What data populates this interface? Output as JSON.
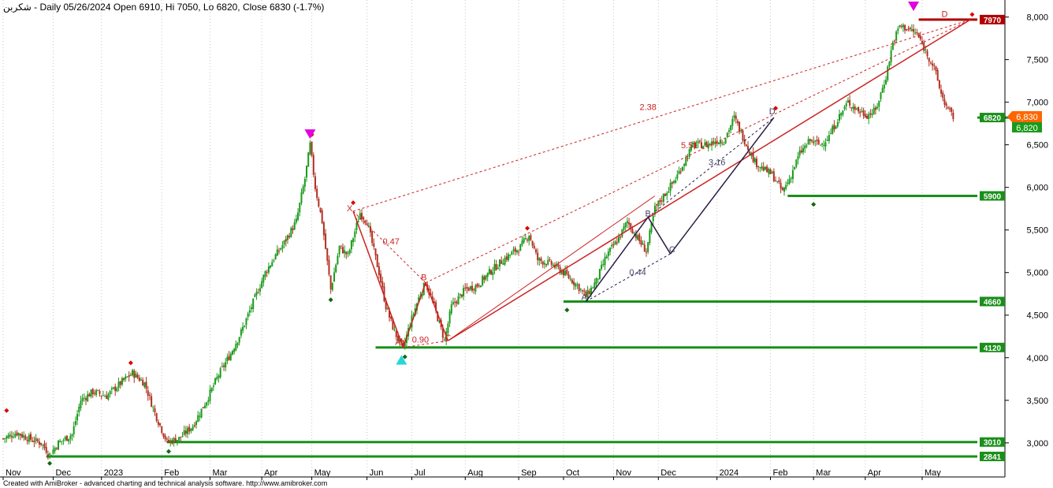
{
  "header": {
    "symbol": "شکربن",
    "info": " - Daily 05/26/2024 Open 6910, Hi 7050, Lo 6820, Close 6830 (-1.7%)"
  },
  "footer": {
    "credit": "Created with AmiBroker - advanced charting and technical analysis software. http://www.amibroker.com"
  },
  "chart_data": {
    "type": "candlestick",
    "y_axis": {
      "min": 2600,
      "max": 8200,
      "ticks": [
        "3,000",
        "3,500",
        "4,000",
        "4,500",
        "5,000",
        "5,500",
        "6,000",
        "6,500",
        "7,000",
        "7,500",
        "8,000"
      ],
      "tick_values": [
        3000,
        3500,
        4000,
        4500,
        5000,
        5500,
        6000,
        6500,
        7000,
        7500,
        8000
      ]
    },
    "x_axis": {
      "labels": [
        "Nov",
        "Dec",
        "2023",
        "Feb",
        "Mar",
        "Apr",
        "May",
        "Jun",
        "Jul",
        "Aug",
        "Sep",
        "Oct",
        "Nov",
        "Dec",
        "2024",
        "Feb",
        "Mar",
        "Apr",
        "May"
      ],
      "label_days": [
        0,
        29,
        57,
        92,
        120,
        150,
        179,
        211,
        237,
        268,
        299,
        325,
        354,
        380,
        414,
        445,
        470,
        500,
        533
      ]
    },
    "last_price": {
      "value": "6,830",
      "color": "#ff6600"
    },
    "last_close_label": "6,820",
    "levels": [
      {
        "label": "7970",
        "price": 7970,
        "color": "#b00000",
        "from_day": 531
      },
      {
        "label": "6820",
        "price": 6820,
        "color": "#1a8f1a",
        "from_day": 588
      },
      {
        "label": "5900",
        "price": 5900,
        "color": "#1a8f1a",
        "from_day": 455
      },
      {
        "label": "4660",
        "price": 4660,
        "color": "#1a8f1a",
        "from_day": 325
      },
      {
        "label": "4120",
        "price": 4120,
        "color": "#1a8f1a",
        "from_day": 216
      },
      {
        "label": "3010",
        "price": 3010,
        "color": "#1a8f1a",
        "from_day": 95
      },
      {
        "label": "2841",
        "price": 2841,
        "color": "#1a8f1a",
        "from_day": 25
      }
    ],
    "price_path": [
      [
        0,
        3050
      ],
      [
        8,
        3120
      ],
      [
        15,
        3050
      ],
      [
        22,
        3000
      ],
      [
        27,
        2860
      ],
      [
        32,
        3000
      ],
      [
        40,
        3100
      ],
      [
        45,
        3500
      ],
      [
        52,
        3600
      ],
      [
        60,
        3550
      ],
      [
        68,
        3700
      ],
      [
        75,
        3820
      ],
      [
        82,
        3700
      ],
      [
        88,
        3350
      ],
      [
        95,
        3010
      ],
      [
        102,
        3050
      ],
      [
        110,
        3200
      ],
      [
        118,
        3500
      ],
      [
        125,
        3800
      ],
      [
        132,
        4050
      ],
      [
        138,
        4300
      ],
      [
        145,
        4650
      ],
      [
        152,
        5000
      ],
      [
        158,
        5200
      ],
      [
        163,
        5350
      ],
      [
        170,
        5600
      ],
      [
        175,
        6100
      ],
      [
        178,
        6500
      ],
      [
        181,
        6000
      ],
      [
        185,
        5600
      ],
      [
        190,
        4800
      ],
      [
        195,
        5300
      ],
      [
        200,
        5200
      ],
      [
        207,
        5700
      ],
      [
        211,
        5600
      ],
      [
        218,
        5000
      ],
      [
        222,
        4600
      ],
      [
        227,
        4300
      ],
      [
        232,
        4110
      ],
      [
        236,
        4400
      ],
      [
        241,
        4700
      ],
      [
        245,
        4880
      ],
      [
        250,
        4600
      ],
      [
        256,
        4200
      ],
      [
        260,
        4600
      ],
      [
        268,
        4800
      ],
      [
        275,
        4850
      ],
      [
        282,
        5000
      ],
      [
        290,
        5150
      ],
      [
        300,
        5300
      ],
      [
        305,
        5450
      ],
      [
        310,
        5150
      ],
      [
        318,
        5100
      ],
      [
        325,
        5000
      ],
      [
        333,
        4850
      ],
      [
        338,
        4720
      ],
      [
        344,
        4900
      ],
      [
        350,
        5200
      ],
      [
        357,
        5400
      ],
      [
        362,
        5600
      ],
      [
        368,
        5400
      ],
      [
        373,
        5250
      ],
      [
        378,
        5750
      ],
      [
        383,
        5900
      ],
      [
        390,
        6100
      ],
      [
        395,
        6300
      ],
      [
        400,
        6500
      ],
      [
        408,
        6500
      ],
      [
        414,
        6550
      ],
      [
        418,
        6550
      ],
      [
        424,
        6820
      ],
      [
        430,
        6550
      ],
      [
        436,
        6300
      ],
      [
        442,
        6200
      ],
      [
        446,
        6150
      ],
      [
        452,
        5950
      ],
      [
        456,
        6100
      ],
      [
        462,
        6400
      ],
      [
        468,
        6550
      ],
      [
        474,
        6500
      ],
      [
        479,
        6600
      ],
      [
        484,
        6800
      ],
      [
        490,
        7000
      ],
      [
        496,
        6900
      ],
      [
        501,
        6850
      ],
      [
        506,
        6900
      ],
      [
        512,
        7300
      ],
      [
        516,
        7700
      ],
      [
        520,
        7900
      ],
      [
        526,
        7850
      ],
      [
        530,
        7800
      ],
      [
        535,
        7600
      ],
      [
        540,
        7400
      ],
      [
        544,
        7100
      ],
      [
        548,
        6900
      ],
      [
        551,
        6830
      ]
    ],
    "signals_down": [
      {
        "day": 178,
        "price": 6570,
        "color": "#e000e0"
      },
      {
        "day": 528,
        "price": 8070,
        "color": "#e000e0"
      }
    ],
    "signals_up": [
      {
        "day": 231,
        "price": 4030,
        "color": "#27d6d6"
      }
    ],
    "pivots_high": [
      {
        "day": 2,
        "price": 3380
      },
      {
        "day": 74,
        "price": 3940
      },
      {
        "day": 179,
        "price": 6620
      },
      {
        "day": 203,
        "price": 5820
      },
      {
        "day": 304,
        "price": 5520
      },
      {
        "day": 448,
        "price": 6930
      },
      {
        "day": 562,
        "price": 8030
      }
    ],
    "pivots_low": [
      {
        "day": 27,
        "price": 2760
      },
      {
        "day": 96,
        "price": 2900
      },
      {
        "day": 190,
        "price": 4680
      },
      {
        "day": 233,
        "price": 4010
      },
      {
        "day": 327,
        "price": 4560
      },
      {
        "day": 470,
        "price": 5800
      }
    ],
    "harmonic_labels": [
      {
        "text": "X",
        "day": 201,
        "price": 5720,
        "color": "#cc2222"
      },
      {
        "text": "B",
        "day": 244,
        "price": 4910,
        "color": "#cc2222"
      },
      {
        "text": "A",
        "day": 229,
        "price": 4150,
        "color": "#cc2222"
      },
      {
        "text": "C",
        "day": 258,
        "price": 4200,
        "color": "#cc2222"
      },
      {
        "text": "D",
        "day": 546,
        "price": 8000,
        "color": "#cc2222"
      },
      {
        "text": "0.47",
        "day": 225,
        "price": 5330,
        "color": "#cc2222"
      },
      {
        "text": "0.90",
        "day": 242,
        "price": 4180,
        "color": "#cc2222"
      },
      {
        "text": "2.38",
        "day": 374,
        "price": 6910,
        "color": "#cc2222"
      },
      {
        "text": "5.51",
        "day": 398,
        "price": 6460,
        "color": "#cc2222"
      },
      {
        "text": "A",
        "day": 337,
        "price": 4680,
        "color": "#444466"
      },
      {
        "text": "B",
        "day": 374,
        "price": 5660,
        "color": "#444466"
      },
      {
        "text": "C",
        "day": 388,
        "price": 5240,
        "color": "#444466"
      },
      {
        "text": "D",
        "day": 446,
        "price": 6860,
        "color": "#444466"
      },
      {
        "text": "0.44",
        "day": 368,
        "price": 4970,
        "color": "#444466"
      },
      {
        "text": "3.16",
        "day": 414,
        "price": 6260,
        "color": "#444466"
      }
    ]
  }
}
